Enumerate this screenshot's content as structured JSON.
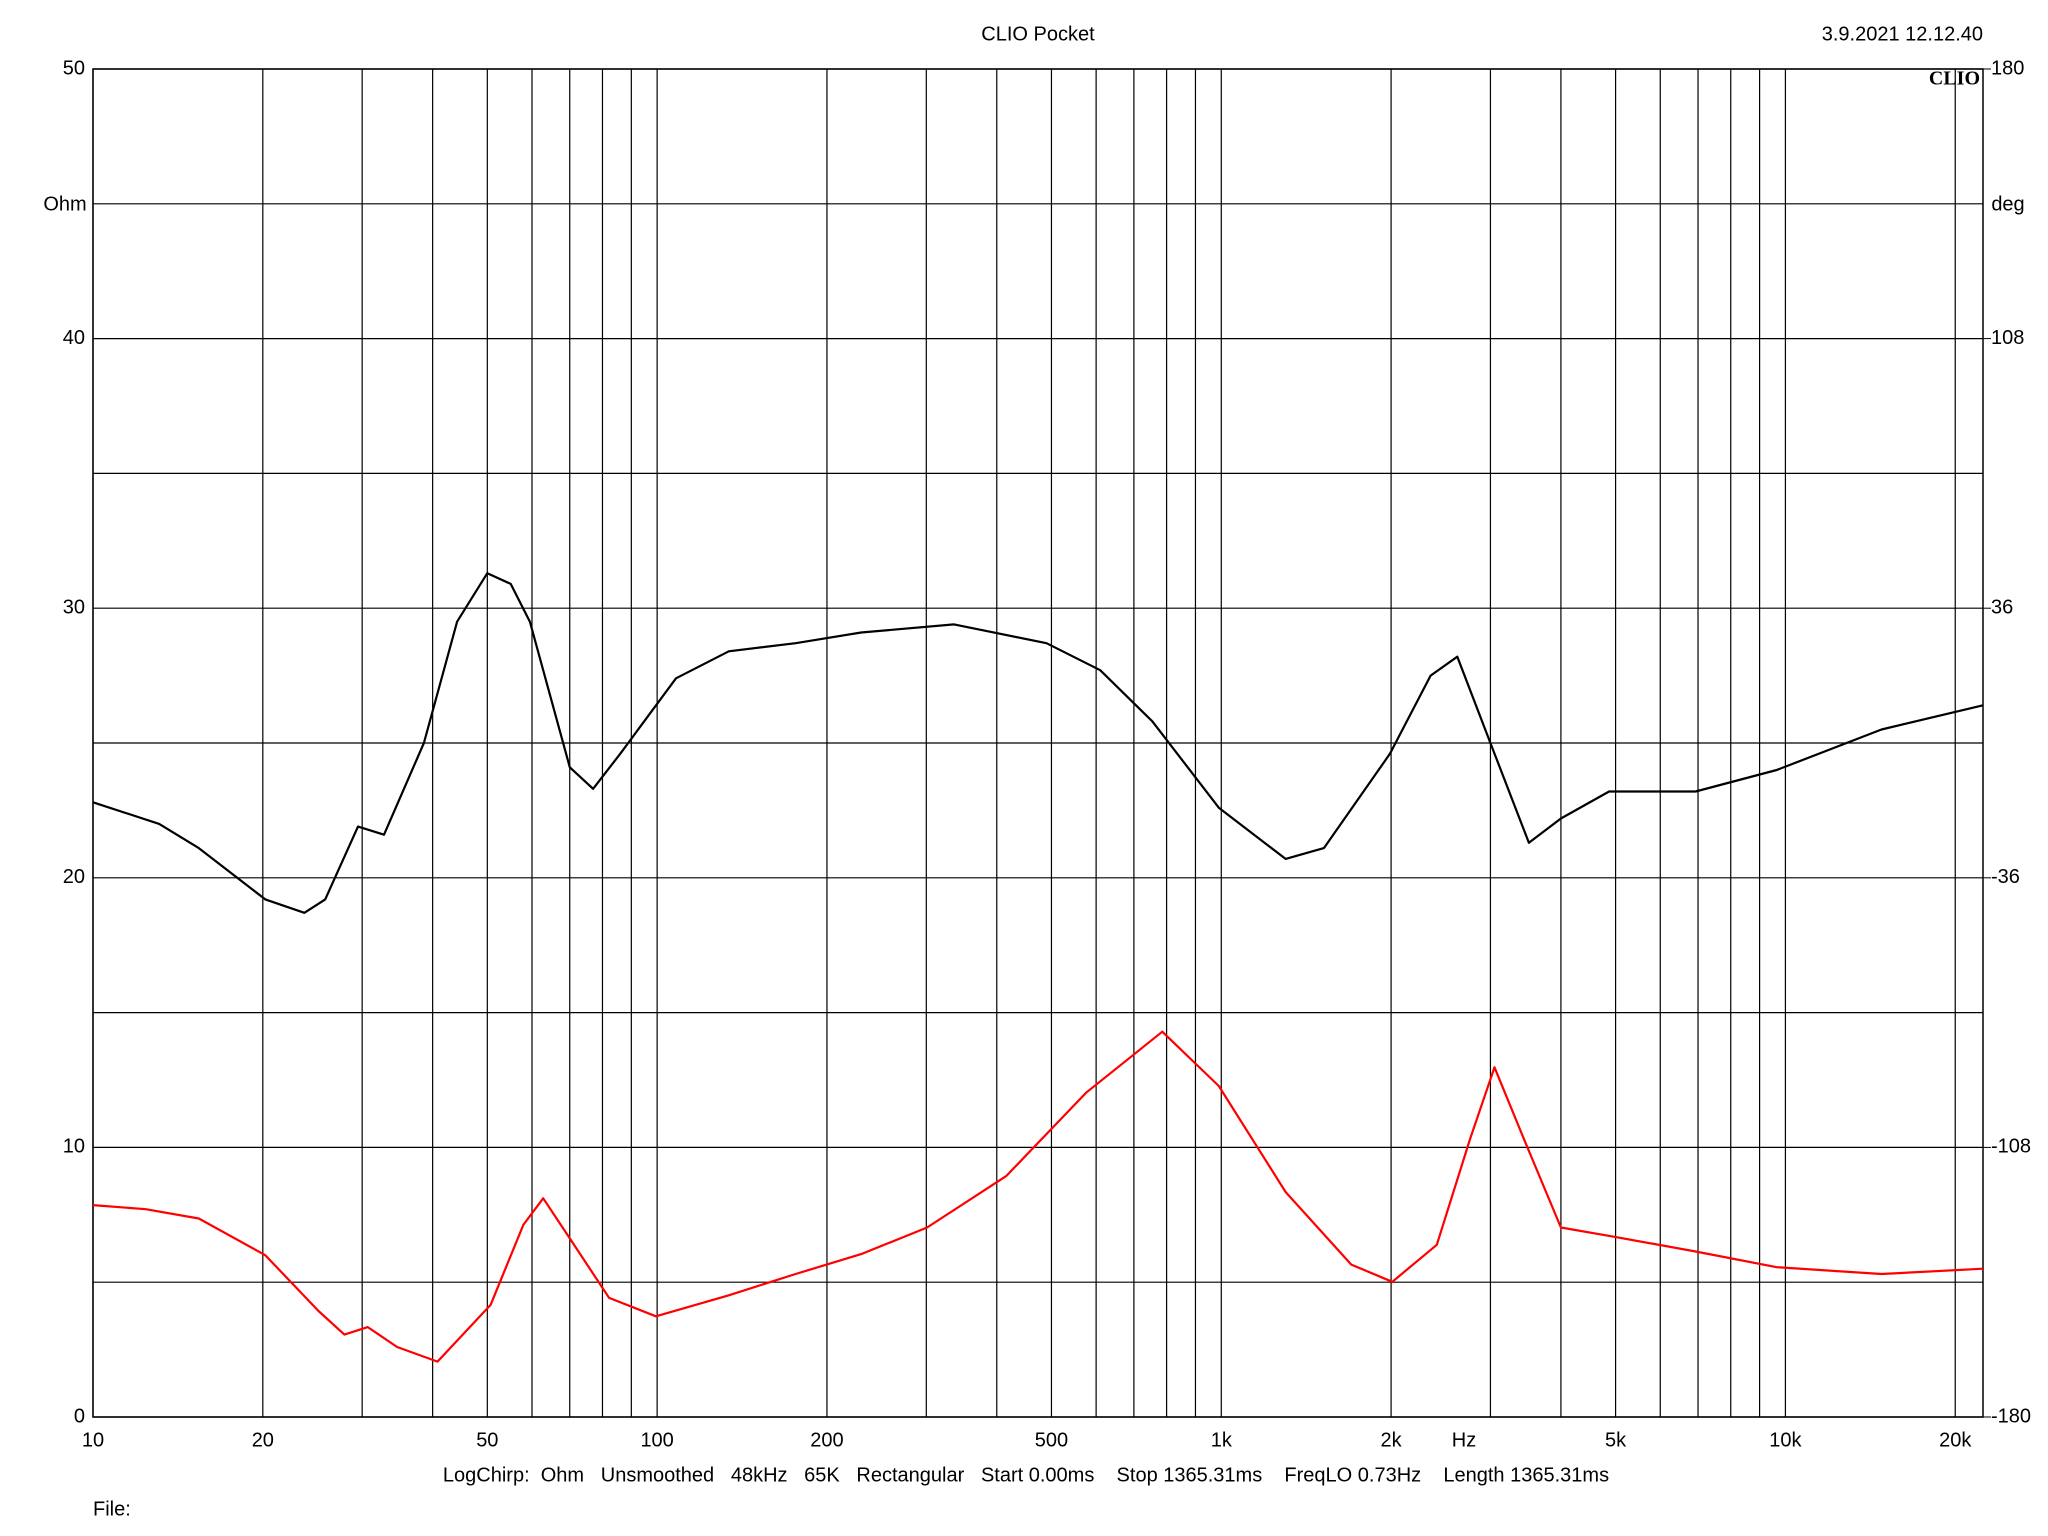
{
  "chart_data": {
    "type": "line",
    "title": "CLIO Pocket",
    "timestamp": "3.9.2021 12.12.40",
    "logo": "CLIO",
    "ylabel": "Ohm",
    "y2label": "deg",
    "xlabel": "Hz",
    "footer": "LogChirp:  Ohm   Unsmoothed   48kHz   65K   Rectangular   Start 0.00ms    Stop 1365.31ms    FreqLO 0.73Hz    Length 1365.31ms",
    "file_label": "File:",
    "xlog": true,
    "grid": true,
    "xlim": [
      10,
      22400
    ],
    "xticks": [
      10,
      20,
      50,
      100,
      200,
      500,
      {
        "value": 1000,
        "label": "1k"
      },
      {
        "value": 2000,
        "label": "2k"
      },
      {
        "value": 5000,
        "label": "5k"
      },
      {
        "value": 10000,
        "label": "10k"
      },
      {
        "value": 20000,
        "label": "20k"
      }
    ],
    "xgrid": [
      30,
      40,
      60,
      70,
      80,
      90,
      300,
      400,
      600,
      700,
      800,
      900,
      3000,
      4000,
      6000,
      7000,
      8000,
      9000
    ],
    "ylim": [
      0,
      50
    ],
    "yticks": [
      0,
      10,
      20,
      30,
      40,
      50
    ],
    "ygrid": [
      5,
      15,
      25,
      35,
      45
    ],
    "y2lim": [
      -180,
      180
    ],
    "y2ticks": [
      -180,
      -108,
      -36,
      36,
      108,
      180
    ],
    "series": [
      {
        "name": "Ohm",
        "color": "#000000",
        "x": [
          10,
          13.1,
          15.4,
          20.2,
          23.7,
          25.8,
          29.5,
          32.8,
          38.6,
          44.2,
          50,
          55,
          59.5,
          70,
          77,
          86,
          108,
          134,
          176,
          230,
          336,
          490,
          610,
          755,
          990,
          1300,
          1520,
          1990,
          2350,
          2620,
          3000,
          3510,
          4000,
          4870,
          6930,
          9650,
          14800,
          22400
        ],
        "values": [
          22.8,
          22.0,
          21.1,
          19.2,
          18.7,
          19.2,
          21.9,
          21.6,
          25.0,
          29.5,
          31.3,
          30.9,
          29.5,
          24.1,
          23.3,
          24.6,
          27.4,
          28.4,
          28.7,
          29.1,
          29.4,
          28.7,
          27.7,
          25.8,
          22.6,
          20.7,
          21.1,
          24.6,
          27.5,
          28.2,
          25.0,
          21.3,
          22.2,
          23.2,
          23.2,
          24.0,
          25.5,
          26.4
        ]
      },
      {
        "name": "deg",
        "color": "#ff0000",
        "axis": "y2",
        "x": [
          10,
          12.4,
          15.4,
          20.2,
          25.1,
          27.9,
          30.7,
          34.6,
          40.8,
          50.7,
          57.9,
          62.8,
          70,
          82.2,
          99.5,
          134,
          176,
          230,
          301,
          416,
          576,
          786,
          990,
          1300,
          1700,
          2010,
          2410,
          2760,
          3050,
          3440,
          4000,
          4990,
          6930,
          9650,
          14800,
          22400
        ],
        "values": [
          -123.4,
          -124.5,
          -127,
          -136.8,
          -151.7,
          -158,
          -156,
          -161.3,
          -165.2,
          -150,
          -128.7,
          -121.6,
          -132.3,
          -148.2,
          -153.1,
          -147.5,
          -141.8,
          -136.5,
          -129.4,
          -115.6,
          -93.4,
          -77.1,
          -91.6,
          -119.9,
          -139.3,
          -143.9,
          -134,
          -105.8,
          -86.6,
          -105.8,
          -129.4,
          -131.9,
          -135.8,
          -140,
          -141.8,
          -140.4
        ]
      }
    ]
  }
}
